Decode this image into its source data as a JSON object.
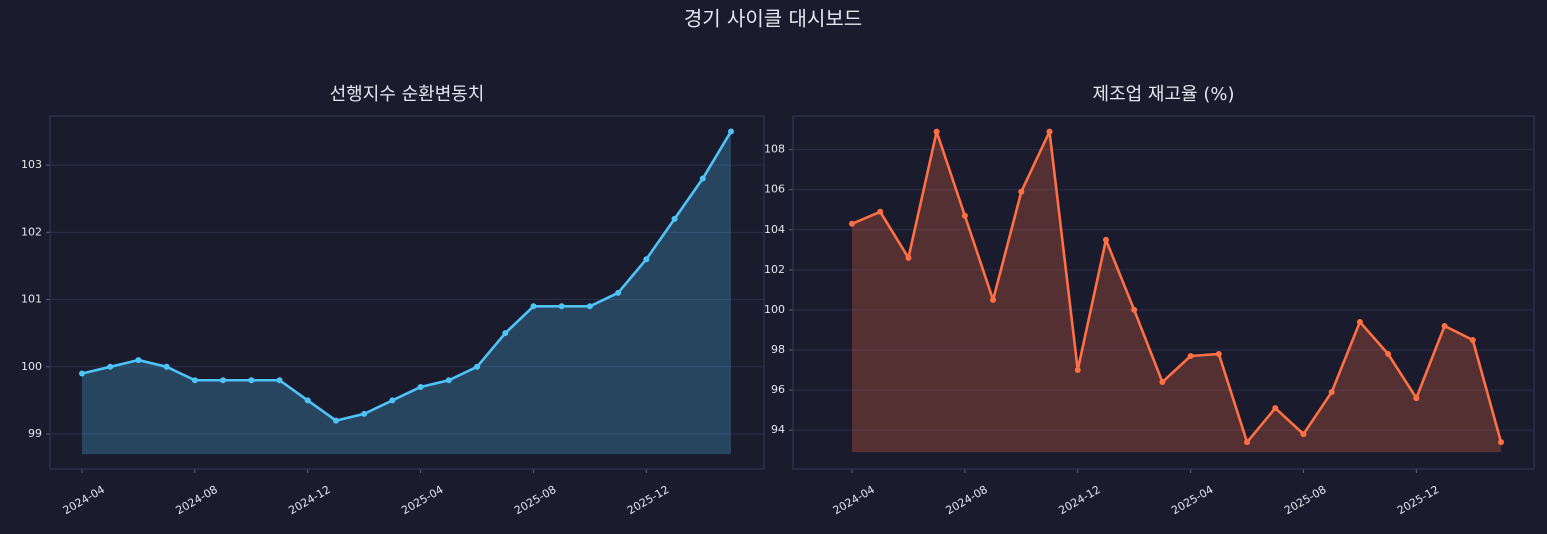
{
  "title": "경기 사이클 대시보드",
  "chart_data": [
    {
      "type": "line",
      "title": "선행지수 순환변동치",
      "x": [
        "2024-04",
        "2024-05",
        "2024-06",
        "2024-07",
        "2024-08",
        "2024-09",
        "2024-10",
        "2024-11",
        "2024-12",
        "2025-01",
        "2025-02",
        "2025-03",
        "2025-04",
        "2025-05",
        "2025-06",
        "2025-07",
        "2025-08",
        "2025-09",
        "2025-10",
        "2025-11",
        "2025-12",
        "2026-01",
        "2026-02",
        "2026-03"
      ],
      "series": [
        {
          "color": "#4fc3f7",
          "values": [
            99.9,
            100.0,
            100.1,
            100.0,
            99.8,
            99.8,
            99.8,
            99.8,
            99.5,
            99.2,
            99.3,
            99.5,
            99.7,
            99.8,
            100.0,
            100.5,
            100.9,
            100.9,
            100.9,
            101.1,
            101.6,
            102.2,
            102.8,
            103.5
          ]
        }
      ],
      "area_baseline": 98.7,
      "xticks": [
        "2024-04",
        "2024-08",
        "2024-12",
        "2025-04",
        "2025-08",
        "2025-12"
      ],
      "ylim": [
        98.48,
        103.73
      ],
      "yticks": [
        99,
        100,
        101,
        102,
        103
      ],
      "grid": true
    },
    {
      "type": "line",
      "title": "제조업 재고율 (%)",
      "x": [
        "2024-04",
        "2024-05",
        "2024-06",
        "2024-07",
        "2024-08",
        "2024-09",
        "2024-10",
        "2024-11",
        "2024-12",
        "2025-01",
        "2025-02",
        "2025-03",
        "2025-04",
        "2025-05",
        "2025-06",
        "2025-07",
        "2025-08",
        "2025-09",
        "2025-10",
        "2025-11",
        "2025-12",
        "2026-01",
        "2026-02",
        "2026-03"
      ],
      "series": [
        {
          "color": "#ff7043",
          "values": [
            104.3,
            104.9,
            102.6,
            108.9,
            104.7,
            100.5,
            105.9,
            108.9,
            97.0,
            103.5,
            100.0,
            96.4,
            97.7,
            97.8,
            93.4,
            95.1,
            93.8,
            95.9,
            99.4,
            97.8,
            95.6,
            99.2,
            98.5,
            93.4
          ]
        }
      ],
      "area_baseline": 92.9,
      "xticks": [
        "2024-04",
        "2024-08",
        "2024-12",
        "2025-04",
        "2025-08",
        "2025-12"
      ],
      "ylim": [
        92.06,
        109.68
      ],
      "yticks": [
        94,
        96,
        98,
        100,
        102,
        104,
        106,
        108
      ],
      "grid": true
    }
  ]
}
